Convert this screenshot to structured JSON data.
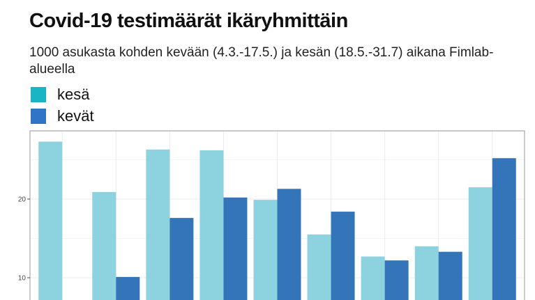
{
  "title": "Covid-19 testimäärät ikäryhmittäin",
  "subtitle": "1000 asukasta kohden kevään (4.3.-17.5.) ja kesän (18.5.-31.7) aikana Fimlab-alueella",
  "legend": [
    {
      "label": "kesä",
      "color": "#1ab5c4"
    },
    {
      "label": "kevät",
      "color": "#2f74c7"
    }
  ],
  "chart_data": {
    "type": "bar",
    "categories": [
      "",
      "",
      "",
      "",
      "",
      "",
      "",
      "",
      ""
    ],
    "series": [
      {
        "name": "kesä",
        "color": "#8dd3df",
        "values": [
          27.3,
          20.9,
          26.3,
          26.2,
          19.9,
          15.5,
          12.7,
          14.0,
          21.5
        ]
      },
      {
        "name": "kevät",
        "color": "#3474b9",
        "values": [
          null,
          10.1,
          17.6,
          20.2,
          21.3,
          18.4,
          12.2,
          13.3,
          25.2
        ]
      }
    ],
    "yticks": [
      10,
      20
    ],
    "ylim_visible": [
      7.2,
      28.7
    ],
    "grid": true,
    "legend_position": "top-left"
  }
}
